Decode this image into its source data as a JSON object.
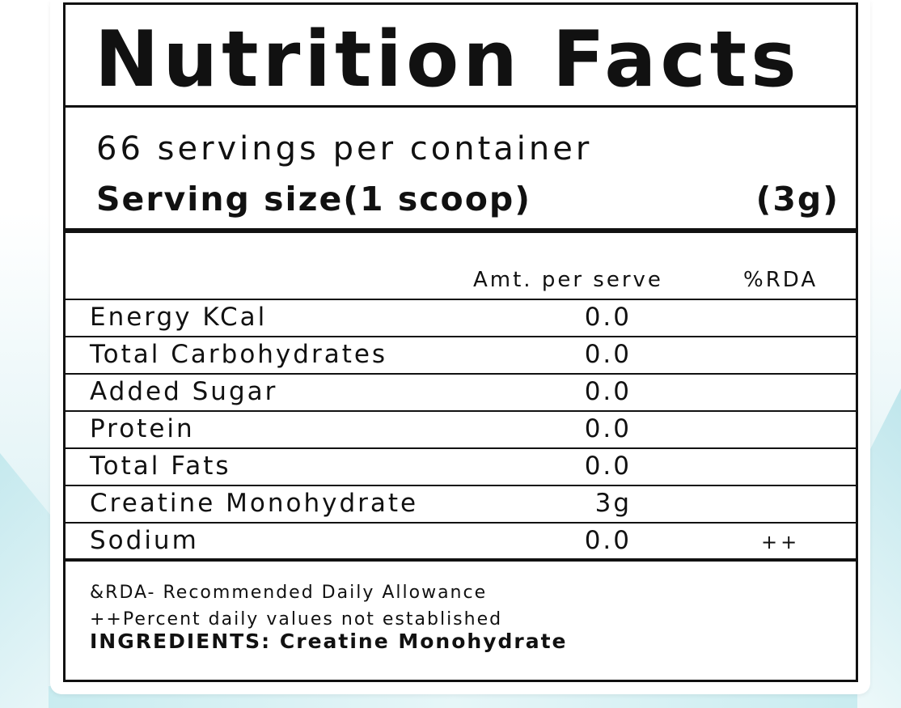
{
  "label": {
    "title": "Nutrition Facts",
    "servings_per_container": "66 servings per container",
    "serving_size_label": "Serving size(1 scoop)",
    "serving_size_weight": "(3g)"
  },
  "table": {
    "headers": {
      "amount": "Amt. per serve",
      "rda": "%RDA"
    },
    "rows": [
      {
        "name": "Energy KCal",
        "amount": "0.0",
        "rda": ""
      },
      {
        "name": "Total Carbohydrates",
        "amount": "0.0",
        "rda": ""
      },
      {
        "name": "Added Sugar",
        "amount": "0.0",
        "rda": ""
      },
      {
        "name": "Protein",
        "amount": "0.0",
        "rda": ""
      },
      {
        "name": "Total Fats",
        "amount": "0.0",
        "rda": ""
      },
      {
        "name": "Creatine Monohydrate",
        "amount": "3g",
        "rda": ""
      },
      {
        "name": "Sodium",
        "amount": "0.0",
        "rda": "++"
      }
    ]
  },
  "footnotes": {
    "rda_definition": "&RDA- Recommended Daily Allowance",
    "percent_note": "++Percent daily values not established",
    "ingredients": "INGREDIENTS: Creatine Monohydrate"
  },
  "colors": {
    "ink": "#111111",
    "background_tint": "#d3eef2"
  }
}
